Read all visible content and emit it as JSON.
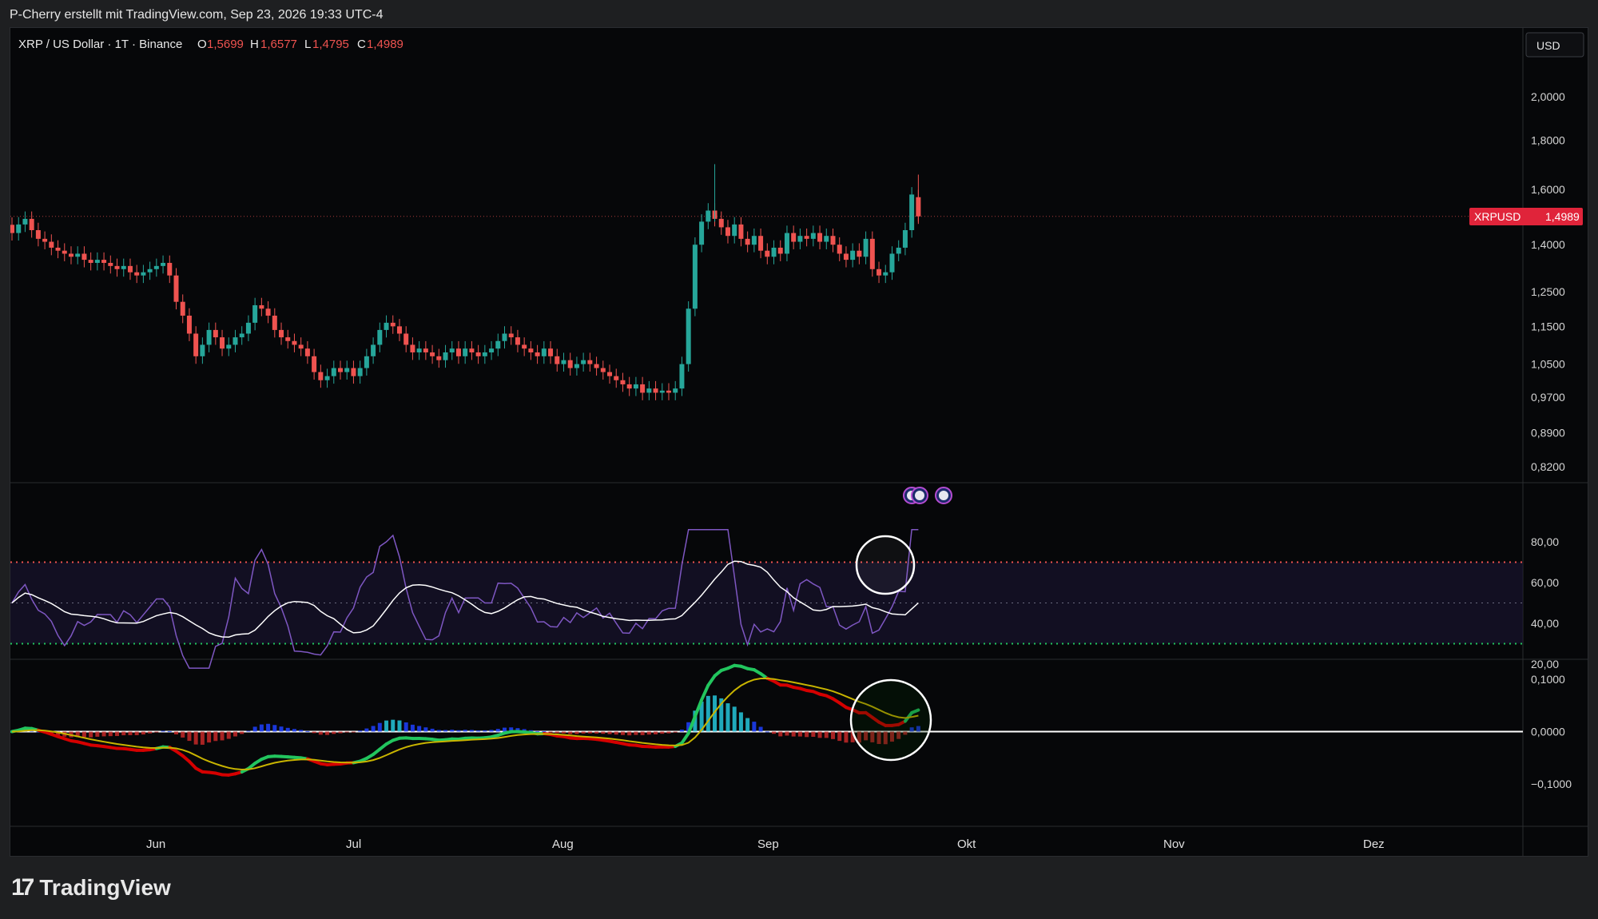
{
  "header": {
    "credit": "P-Cherry erstellt mit TradingView.com, Sep 23, 2026 19:33 UTC-4"
  },
  "legend": {
    "symbol": "XRP / US Dollar · 1T · Binance",
    "open_label": "O",
    "open": "1,5699",
    "high_label": "H",
    "high": "1,6577",
    "low_label": "L",
    "low": "1,4795",
    "close_label": "C",
    "close": "1,4989"
  },
  "currency_button": "USD",
  "price_tag": {
    "symbol": "XRPUSD",
    "value": "1,4989"
  },
  "logo": {
    "mark": "17",
    "text": "TradingView"
  },
  "colors": {
    "up": "#26a69a",
    "down": "#ef5350",
    "accent_red": "#e0243a",
    "rsi": "#7e57c2",
    "rsi_ma": "#ffffff",
    "macd_up": "#22c55e",
    "macd_down": "#d50000",
    "signal": "#c8b400"
  },
  "chart_data": [
    {
      "type": "candlestick",
      "title": "XRP / US Dollar · 1T · Binance",
      "y_axis_ticks": [
        "2,0000",
        "1,8000",
        "1,6000",
        "1,4000",
        "1,2500",
        "1,1500",
        "1,0500",
        "0,9700",
        "0,8900",
        "0,8200"
      ],
      "y_axis_values": [
        2.0,
        1.8,
        1.6,
        1.4,
        1.25,
        1.15,
        1.05,
        0.97,
        0.89,
        0.82
      ],
      "x_axis_ticks": [
        "Jun",
        "Jul",
        "Aug",
        "Sep",
        "Okt",
        "Nov",
        "Dez"
      ],
      "scale": "log",
      "last_price": 1.4989,
      "closes": [
        1.44,
        1.47,
        1.49,
        1.45,
        1.42,
        1.41,
        1.39,
        1.38,
        1.37,
        1.36,
        1.37,
        1.35,
        1.34,
        1.35,
        1.34,
        1.33,
        1.32,
        1.33,
        1.31,
        1.3,
        1.31,
        1.32,
        1.33,
        1.34,
        1.3,
        1.22,
        1.18,
        1.13,
        1.07,
        1.1,
        1.14,
        1.12,
        1.09,
        1.1,
        1.12,
        1.13,
        1.16,
        1.21,
        1.2,
        1.18,
        1.14,
        1.12,
        1.11,
        1.1,
        1.09,
        1.07,
        1.03,
        1.01,
        1.02,
        1.04,
        1.03,
        1.04,
        1.02,
        1.04,
        1.07,
        1.1,
        1.14,
        1.16,
        1.15,
        1.13,
        1.1,
        1.08,
        1.09,
        1.08,
        1.07,
        1.06,
        1.08,
        1.09,
        1.07,
        1.09,
        1.08,
        1.07,
        1.08,
        1.09,
        1.11,
        1.13,
        1.12,
        1.1,
        1.09,
        1.08,
        1.07,
        1.09,
        1.07,
        1.05,
        1.06,
        1.04,
        1.05,
        1.06,
        1.05,
        1.04,
        1.03,
        1.02,
        1.01,
        1.0,
        0.99,
        1.0,
        0.98,
        0.99,
        0.98,
        0.985,
        0.98,
        0.99,
        1.05,
        1.2,
        1.4,
        1.48,
        1.52,
        1.49,
        1.46,
        1.43,
        1.47,
        1.42,
        1.4,
        1.43,
        1.38,
        1.36,
        1.39,
        1.37,
        1.44,
        1.41,
        1.43,
        1.42,
        1.44,
        1.41,
        1.43,
        1.4,
        1.37,
        1.35,
        1.38,
        1.36,
        1.42,
        1.32,
        1.3,
        1.31,
        1.37,
        1.39,
        1.45,
        1.58,
        1.4989
      ],
      "rsi_y_axis_ticks": [
        "80,00",
        "60,00",
        "40,00",
        "20,00"
      ],
      "rsi_y_axis_values": [
        80,
        60,
        40,
        20
      ],
      "rsi_bands": {
        "upper": 70,
        "mid": 50,
        "lower": 30
      },
      "macd_y_axis_ticks": [
        "0,1000",
        "0,0000",
        "−0,1000"
      ],
      "macd_y_axis_values": [
        0.1,
        0.0,
        -0.1
      ]
    }
  ],
  "annotations": [
    {
      "name": "rsi-highlight-circle"
    },
    {
      "name": "macd-highlight-circle"
    }
  ]
}
